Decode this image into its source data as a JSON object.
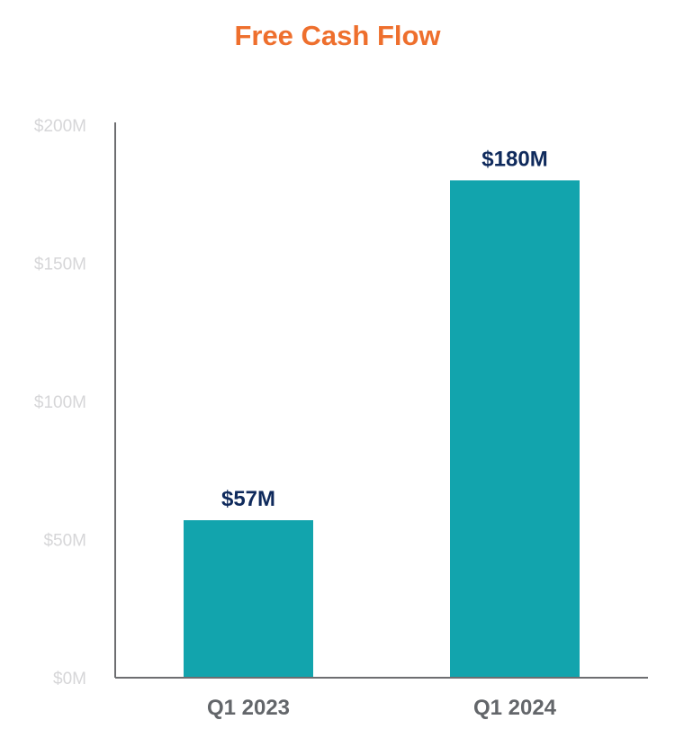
{
  "chart_data": {
    "type": "bar",
    "title": "Free Cash Flow",
    "categories": [
      "Q1 2023",
      "Q1 2024"
    ],
    "values": [
      57,
      180
    ],
    "data_labels": [
      "$57M",
      "$180M"
    ],
    "yticks": [
      0,
      50,
      100,
      150,
      200
    ],
    "ytick_labels": [
      "$0M",
      "$50M",
      "$100M",
      "$150M",
      "$200M"
    ],
    "ylim": [
      0,
      200
    ],
    "xlabel": "",
    "ylabel": "",
    "grid": false,
    "legend": "none"
  },
  "colors": {
    "title": "#ee6f2d",
    "bar": "#12a4ad",
    "data_label": "#0f2a5c",
    "category_label": "#63666a",
    "tick_label": "#d6d6d8",
    "axis": "#6d6e71"
  }
}
